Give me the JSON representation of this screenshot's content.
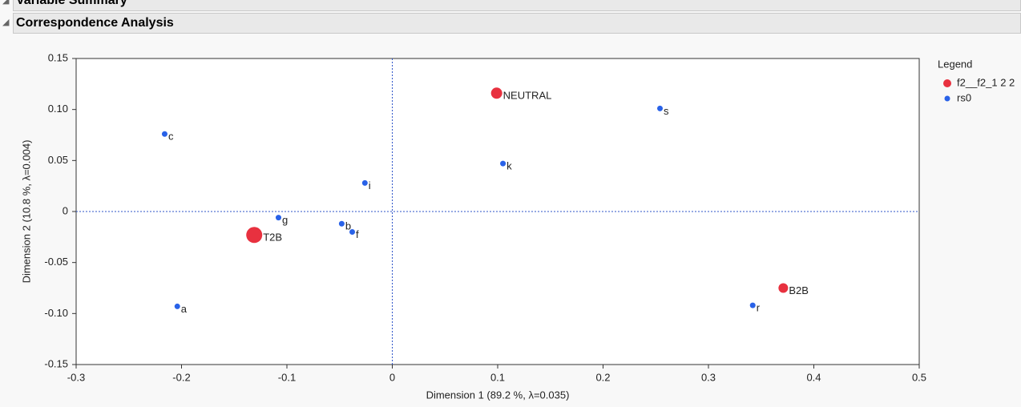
{
  "outline": [
    "Variable Summary",
    "Correspondence Analysis"
  ],
  "chart_data": {
    "type": "scatter",
    "xlabel": "Dimension 1  (89.2 %, λ=0.035)",
    "ylabel": "Dimension 2  (10.8 %, λ=0.004)",
    "xlim": [
      -0.3,
      0.5
    ],
    "ylim": [
      -0.15,
      0.15
    ],
    "xticks": [
      -0.3,
      -0.2,
      -0.1,
      0,
      0.1,
      0.2,
      0.3,
      0.4,
      0.5
    ],
    "yticks": [
      0.15,
      {
        "value": 0.1,
        "label": "0.10"
      },
      0.05,
      0,
      -0.05,
      {
        "value": -0.1,
        "label": "-0.10"
      },
      -0.15
    ],
    "xref": 0,
    "yref": 0,
    "legend_title": "Legend",
    "legend": "right",
    "series": [
      {
        "name": "f2__f2_1 2 2",
        "color": "#e8313f",
        "labels": [
          "T2B",
          "NEUTRAL",
          "B2B"
        ],
        "x": [
          -0.131,
          0.099,
          0.371
        ],
        "values": [
          -0.023,
          0.116,
          -0.075
        ],
        "sizes": [
          10,
          7,
          6
        ]
      },
      {
        "name": "rs0",
        "color": "#2962e8",
        "labels": [
          "c",
          "a",
          "g",
          "b",
          "f",
          "i",
          "k",
          "s",
          "r"
        ],
        "x": [
          -0.216,
          -0.204,
          -0.108,
          -0.048,
          -0.038,
          -0.026,
          0.105,
          0.254,
          0.342
        ],
        "values": [
          0.076,
          -0.093,
          -0.006,
          -0.012,
          -0.02,
          0.028,
          0.047,
          0.101,
          -0.092
        ]
      }
    ]
  }
}
